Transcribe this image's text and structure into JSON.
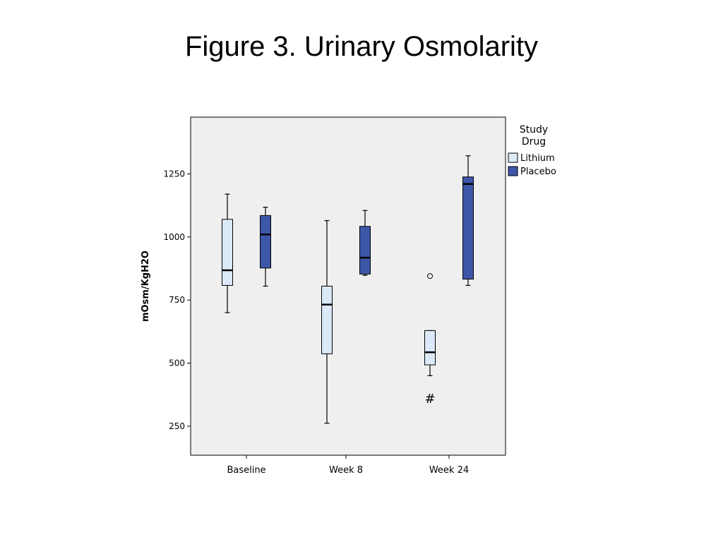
{
  "slide": {
    "title": "Figure 3. Urinary Osmolarity"
  },
  "chart_data": {
    "type": "box",
    "ylabel": "mOsm/KgH2O",
    "xlabel": "",
    "ylim": [
      135,
      1475
    ],
    "yticks": [
      250,
      500,
      750,
      1000,
      1250
    ],
    "categories": [
      "Baseline",
      "Week 8",
      "Week 24"
    ],
    "legend": {
      "title": "Study Drug",
      "placement": "right"
    },
    "series": [
      {
        "name": "Lithium",
        "color": "#dbe9f8",
        "boxes": [
          {
            "min": 700,
            "q1": 808,
            "median": 868,
            "q3": 1070,
            "max": 1170
          },
          {
            "min": 262,
            "q1": 537,
            "median": 732,
            "q3": 805,
            "max": 1065
          },
          {
            "min": 450,
            "q1": 493,
            "median": 543,
            "q3": 629,
            "max": 629
          }
        ]
      },
      {
        "name": "Placebo",
        "color": "#3d57a8",
        "boxes": [
          {
            "min": 805,
            "q1": 877,
            "median": 1010,
            "q3": 1085,
            "max": 1118
          },
          {
            "min": 848,
            "q1": 853,
            "median": 918,
            "q3": 1042,
            "max": 1105
          },
          {
            "min": 808,
            "q1": 833,
            "median": 1210,
            "q3": 1238,
            "max": 1322
          }
        ]
      }
    ],
    "outliers": [
      {
        "series": "Lithium",
        "category": "Week 24",
        "value": 845
      }
    ],
    "annotations": [
      {
        "category": "Week 24",
        "series": "Lithium",
        "text": "#",
        "value": 362
      }
    ],
    "grid": false
  },
  "colors": {
    "plot_background": "#efefef",
    "axis": "#000000"
  }
}
